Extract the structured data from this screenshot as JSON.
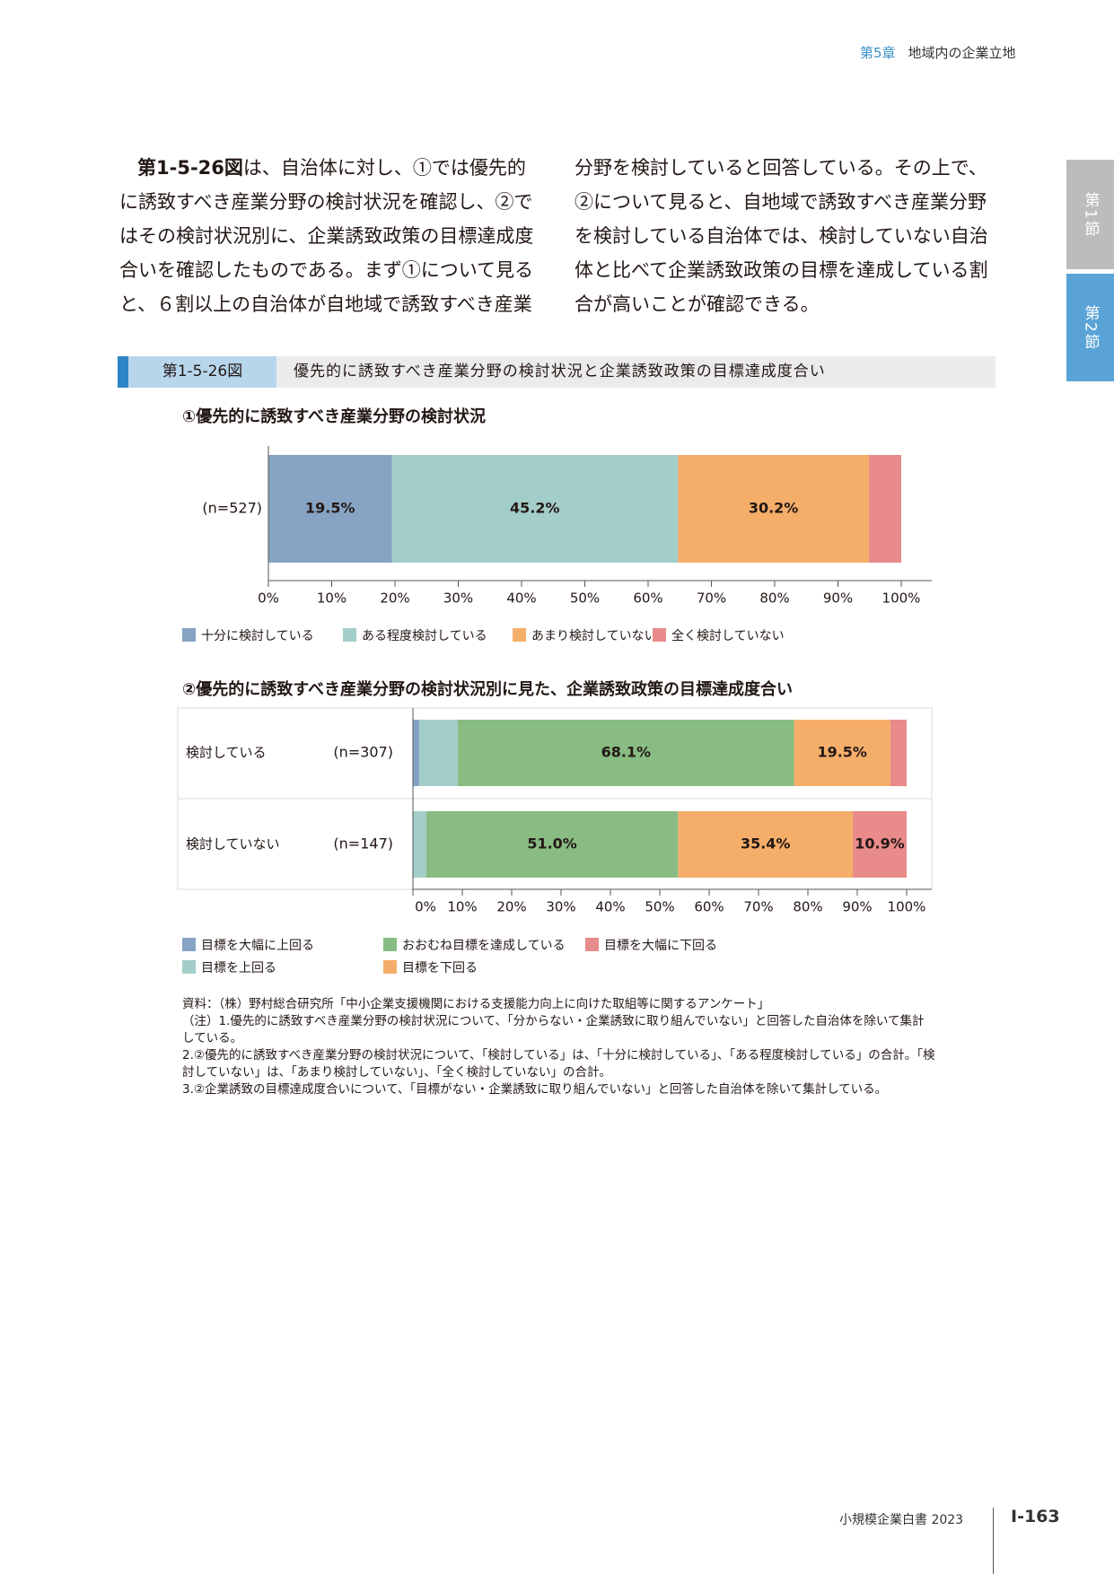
{
  "header": {
    "chapter_num": "第5章",
    "chapter_title": "地域内の企業立地"
  },
  "side_tabs": [
    "第1節",
    "第2節"
  ],
  "body": {
    "col1_ref": "第1-5-26図",
    "col1_text": "は、自治体に対し、①では優先的に誘致すべき産業分野の検討状況を確認し、②ではその検討状況別に、企業誘致政策の目標達成度合いを確認したものである。まず①について見ると、６割以上の自治体が自地域で誘致すべき産業",
    "col2_text": "分野を検討していると回答している。その上で、②について見ると、自地域で誘致すべき産業分野を検討している自治体では、検討していない自治体と比べて企業誘致政策の目標を達成している割合が高いことが確認できる。"
  },
  "figure": {
    "number": "第1-5-26図",
    "title": "優先的に誘致すべき産業分野の検討状況と企業誘致政策の目標達成度合い"
  },
  "chart_data": [
    {
      "type": "bar",
      "orientation": "horizontal",
      "stacked": true,
      "title": "①優先的に誘致すべき産業分野の検討状況",
      "categories": [
        "(n=527)"
      ],
      "series": [
        {
          "name": "十分に検討している",
          "values": [
            19.5
          ],
          "label": "19.5%",
          "color": "#86a3c3"
        },
        {
          "name": "ある程度検討している",
          "values": [
            45.2
          ],
          "label": "45.2%",
          "color": "#a3cdc9"
        },
        {
          "name": "あまり検討していない",
          "values": [
            30.2
          ],
          "label": "30.2%",
          "color": "#f4ae6a"
        },
        {
          "name": "全く検討していない",
          "values": [
            5.1
          ],
          "label": "",
          "color": "#e88b8a"
        }
      ],
      "xlim": [
        0,
        100
      ],
      "ticks": [
        "0%",
        "10%",
        "20%",
        "30%",
        "40%",
        "50%",
        "60%",
        "70%",
        "80%",
        "90%",
        "100%"
      ],
      "legend_position": "bottom"
    },
    {
      "type": "bar",
      "orientation": "horizontal",
      "stacked": true,
      "title": "②優先的に誘致すべき産業分野の検討状況別に見た、企業誘致政策の目標達成度合い",
      "categories": [
        "検討している",
        "検討していない"
      ],
      "category_n": [
        "(n=307)",
        "(n=147)"
      ],
      "series": [
        {
          "name": "目標を大幅に上回る",
          "values": [
            1.3,
            0.0
          ],
          "labels": [
            "",
            ""
          ],
          "color": "#86a3c3"
        },
        {
          "name": "目標を上回る",
          "values": [
            7.8,
            2.7
          ],
          "labels": [
            "",
            ""
          ],
          "color": "#a3cdc9"
        },
        {
          "name": "おおむね目標を達成している",
          "values": [
            68.1,
            51.0
          ],
          "labels": [
            "68.1%",
            "51.0%"
          ],
          "color": "#88bc82"
        },
        {
          "name": "目標を下回る",
          "values": [
            19.5,
            35.4
          ],
          "labels": [
            "19.5%",
            "35.4%"
          ],
          "color": "#f4ae6a"
        },
        {
          "name": "目標を大幅に下回る",
          "values": [
            3.3,
            10.9
          ],
          "labels": [
            "",
            "10.9%"
          ],
          "color": "#e88b8a"
        }
      ],
      "xlim": [
        0,
        100
      ],
      "ticks": [
        "0%",
        "10%",
        "20%",
        "30%",
        "40%",
        "50%",
        "60%",
        "70%",
        "80%",
        "90%",
        "100%"
      ],
      "legend_position": "bottom"
    }
  ],
  "notes": {
    "source": "資料：（株）野村総合研究所「中小企業支援機関における支援能力向上に向けた取組等に関するアンケート」",
    "note1": "（注）1.優先的に誘致すべき産業分野の検討状況について、「分からない・企業誘致に取り組んでいない」と回答した自治体を除いて集計している。",
    "note2": "2.②優先的に誘致すべき産業分野の検討状況について、「検討している」は、「十分に検討している」、「ある程度検討している」の合計。「検討していない」は、「あまり検討していない」、「全く検討していない」の合計。",
    "note3": "3.②企業誘致の目標達成度合いについて、「目標がない・企業誘致に取り組んでいない」と回答した自治体を除いて集計している。"
  },
  "footer": {
    "book": "小規模企業白書 2023",
    "page": "Ⅰ-163"
  }
}
